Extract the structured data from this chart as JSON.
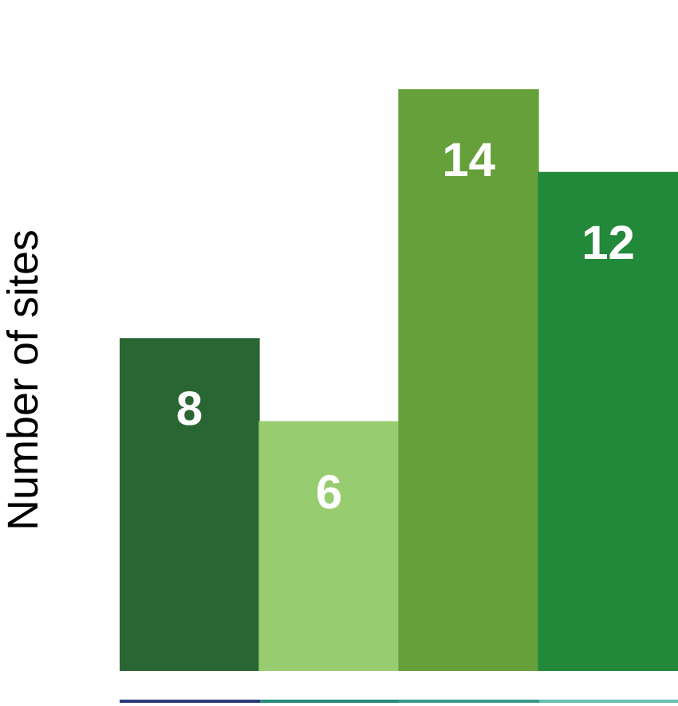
{
  "chart_data": {
    "type": "bar",
    "ylabel": "Number of sites",
    "categories": [
      null,
      null,
      null,
      null
    ],
    "values": [
      8,
      6,
      14,
      12
    ],
    "colors": [
      "#2a6634",
      "#98cc70",
      "#66a03a",
      "#22883a"
    ],
    "ylim": [
      0,
      14
    ],
    "data_labels": true,
    "grid": false,
    "legend": false
  }
}
